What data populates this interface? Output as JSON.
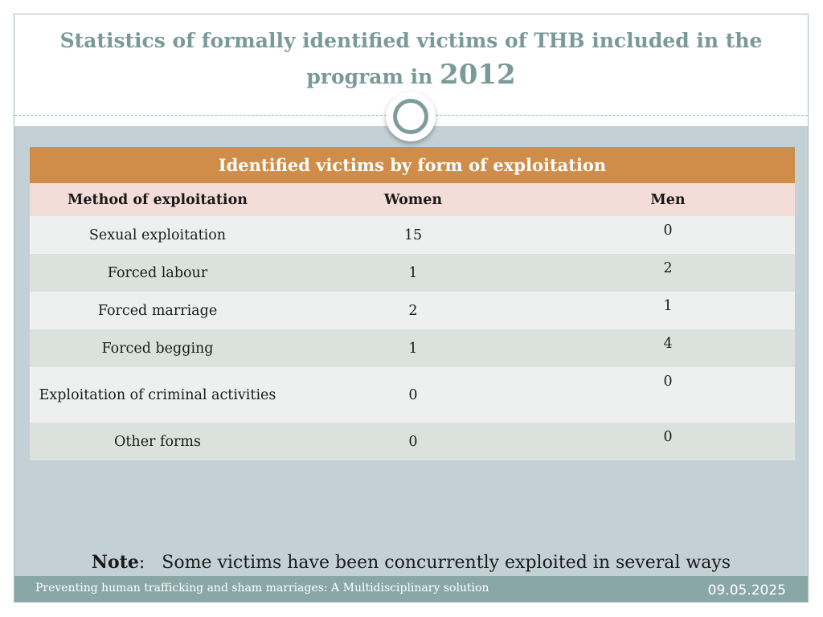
{
  "slide": {
    "title_main": "Statistics of formally identified victims of THB included in the program in ",
    "title_year": "2012",
    "note_label": "Note",
    "note_separator": ":",
    "note_text": "Some victims have been concurrently exploited in several ways",
    "footer_text": "Preventing human trafficking and sham marriages: A Multidisciplinary solution",
    "footer_date": "09.05.2025"
  },
  "colors": {
    "title": "#7a9a98",
    "banner": "#d08c49",
    "header_row": "#f4dcd9",
    "row_light": "#eef0ef",
    "row_dark": "#dbe2dd",
    "content_background": "#c3d1d6",
    "footer": "#8aa7a8"
  },
  "table": {
    "banner": "Identified victims by form of exploitation",
    "headers": [
      "Method of exploitation",
      "Women",
      "Men"
    ],
    "rows": [
      {
        "method": "Sexual exploitation",
        "women": "15",
        "men": "0"
      },
      {
        "method": "Forced labour",
        "women": "1",
        "men": "2"
      },
      {
        "method": "Forced marriage",
        "women": "2",
        "men": "1"
      },
      {
        "method": "Forced begging",
        "women": "1",
        "men": "4"
      },
      {
        "method": "Exploitation of criminal activities",
        "women": "0",
        "men": "0"
      },
      {
        "method": "Other forms",
        "women": "0",
        "men": "0"
      }
    ]
  }
}
